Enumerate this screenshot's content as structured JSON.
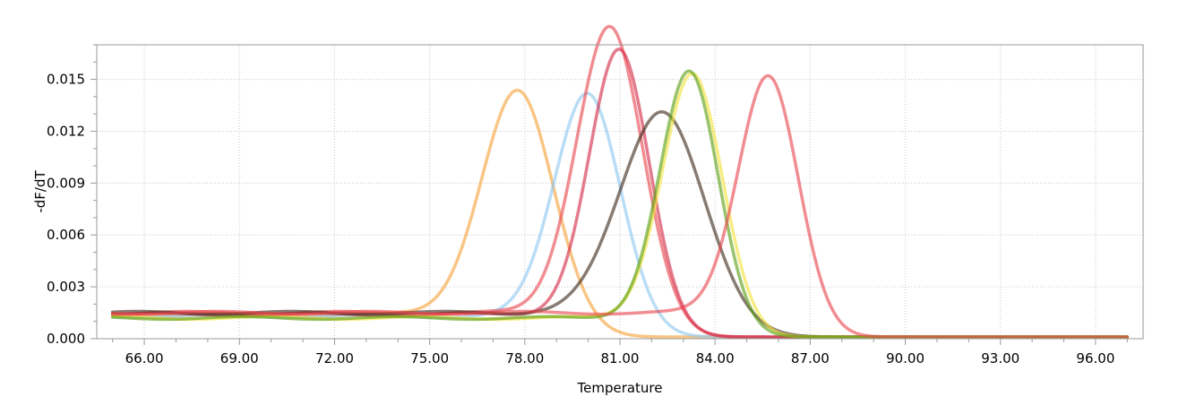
{
  "chart_data": {
    "type": "line",
    "xlabel": "Temperature",
    "ylabel": "-dF/dT",
    "xlim": [
      64.5,
      97.5
    ],
    "ylim": [
      0,
      0.017
    ],
    "x_ticks": [
      "66.00",
      "69.00",
      "72.00",
      "75.00",
      "78.00",
      "81.00",
      "84.00",
      "87.00",
      "90.00",
      "93.00",
      "96.00"
    ],
    "y_ticks": [
      "0.000",
      "0.003",
      "0.006",
      "0.009",
      "0.012",
      "0.015"
    ],
    "x_tick_values": [
      66,
      69,
      72,
      75,
      78,
      81,
      84,
      87,
      90,
      93,
      96
    ],
    "y_tick_values": [
      0,
      0.003,
      0.006,
      0.009,
      0.012,
      0.015
    ],
    "grid": true,
    "legend": "none",
    "x_range": [
      65,
      97
    ],
    "series": [
      {
        "color": "#f5a23a",
        "peak_temp": 77.8,
        "peak_value": 0.0132,
        "width": 1.15,
        "baseline_low": 0.0014,
        "baseline_high": 0.0001,
        "transition": 78.4
      },
      {
        "color": "#8ec8f0",
        "peak_temp": 80.0,
        "peak_value": 0.0132,
        "width": 1.05,
        "baseline_low": 0.0013,
        "baseline_high": 0.0001,
        "transition": 80.6
      },
      {
        "color": "#e8474f",
        "peak_temp": 80.7,
        "peak_value": 0.0169,
        "width": 1.05,
        "baseline_low": 0.0015,
        "baseline_high": 0.0001,
        "transition": 81.2
      },
      {
        "color": "#d42a45",
        "peak_temp": 81.0,
        "peak_value": 0.0156,
        "width": 0.95,
        "baseline_low": 0.0014,
        "baseline_high": 0.0001,
        "transition": 81.5
      },
      {
        "color": "#3d2a1c",
        "peak_temp": 82.4,
        "peak_value": 0.012,
        "width": 1.35,
        "baseline_low": 0.0015,
        "baseline_high": 0.0001,
        "transition": 82.9
      },
      {
        "color": "#f2e23a",
        "peak_temp": 83.3,
        "peak_value": 0.0144,
        "width": 0.95,
        "baseline_low": 0.0012,
        "baseline_high": 0.0001,
        "transition": 83.8
      },
      {
        "color": "#5a9e14",
        "peak_temp": 83.2,
        "peak_value": 0.0145,
        "width": 0.92,
        "baseline_low": 0.0012,
        "baseline_high": 0.0001,
        "transition": 83.7
      },
      {
        "color": "#e8474f",
        "peak_temp": 85.7,
        "peak_value": 0.0141,
        "width": 0.95,
        "baseline_low": 0.0015,
        "baseline_high": 0.0001,
        "transition": 86.2
      }
    ]
  }
}
